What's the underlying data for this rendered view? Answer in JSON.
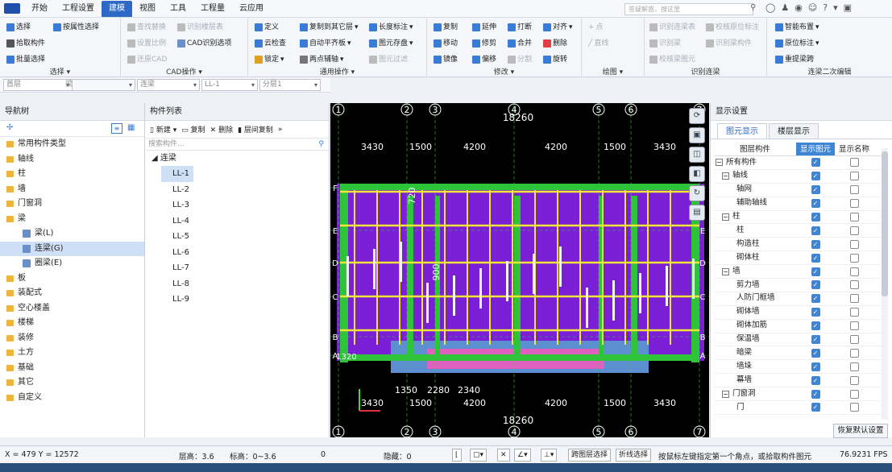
{
  "menu": {
    "tabs": [
      "开始",
      "工程设置",
      "建模",
      "视图",
      "工具",
      "工程量",
      "云应用"
    ],
    "active_index": 2,
    "search_placeholder": "答疑解惑，搜这里"
  },
  "ribbon": {
    "select_group": {
      "label": "选择",
      "items": [
        "选择",
        "按属性选择",
        "拾取构件",
        "批量选择"
      ]
    },
    "cad_group": {
      "label": "CAD操作",
      "items": [
        "查找替换",
        "识别楼层表",
        "设置比例",
        "CAD识别选项",
        "还原CAD"
      ]
    },
    "common_group": {
      "label": "通用操作",
      "items": [
        "定义",
        "复制到其它层",
        "长度标注",
        "云检查",
        "自动平齐板",
        "图元存盘",
        "锁定",
        "两点辅轴",
        "图元过滤"
      ]
    },
    "modify_group": {
      "label": "修改",
      "items": [
        "复制",
        "延伸",
        "打断",
        "对齐",
        "移动",
        "修剪",
        "合并",
        "删除",
        "镜像",
        "偏移",
        "分割",
        "旋转"
      ]
    },
    "draw_group": {
      "label": "绘图",
      "items": [
        "点",
        "直线"
      ]
    },
    "recog_group": {
      "label": "识别连梁",
      "items": [
        "识别连梁表",
        "校核原位标注",
        "识别梁",
        "识别梁构件",
        "校核梁图元"
      ]
    },
    "edit2_group": {
      "label": "连梁二次编辑",
      "items": [
        "智能布置",
        "原位标注",
        "重提梁跨"
      ]
    }
  },
  "filter": {
    "floor": "首层",
    "type": "梁",
    "sub": "连梁",
    "comp": "LL-1",
    "layer": "分层1"
  },
  "nav": {
    "title": "导航树",
    "items": [
      {
        "label": "常用构件类型",
        "level": 0
      },
      {
        "label": "轴线",
        "level": 0
      },
      {
        "label": "柱",
        "level": 0
      },
      {
        "label": "墙",
        "level": 0
      },
      {
        "label": "门窗洞",
        "level": 0
      },
      {
        "label": "梁",
        "level": 0
      },
      {
        "label": "梁(L)",
        "level": 1
      },
      {
        "label": "连梁(G)",
        "level": 1,
        "selected": true
      },
      {
        "label": "圈梁(E)",
        "level": 1
      },
      {
        "label": "板",
        "level": 0
      },
      {
        "label": "装配式",
        "level": 0
      },
      {
        "label": "空心楼盖",
        "level": 0
      },
      {
        "label": "楼梯",
        "level": 0
      },
      {
        "label": "装修",
        "level": 0
      },
      {
        "label": "土方",
        "level": 0
      },
      {
        "label": "基础",
        "level": 0
      },
      {
        "label": "其它",
        "level": 0
      },
      {
        "label": "自定义",
        "level": 0
      }
    ]
  },
  "components": {
    "title": "构件列表",
    "tools": [
      "新建",
      "复制",
      "删除",
      "层间复制"
    ],
    "search_placeholder": "搜索构件...",
    "group": "连梁",
    "items": [
      "LL-1",
      "LL-2",
      "LL-3",
      "LL-4",
      "LL-5",
      "LL-6",
      "LL-7",
      "LL-8",
      "LL-9"
    ],
    "selected": "LL-1"
  },
  "canvas": {
    "axis_numbers": [
      "1",
      "2",
      "3",
      "4",
      "5",
      "6",
      "7"
    ],
    "axis_letters": [
      "F",
      "E",
      "D",
      "C",
      "B",
      "A"
    ],
    "top_total": "18260",
    "bottom_total": "18260",
    "top_dims": [
      "3430",
      "1500",
      "4200",
      "4200",
      "1500",
      "3430"
    ],
    "bottom_dims": [
      "3430",
      "1500",
      "4200",
      "4200",
      "1500",
      "3430"
    ],
    "lower_dims": [
      "1350",
      "2280",
      "2340"
    ],
    "vertical_dims": [
      "720",
      "900"
    ],
    "left_dim": "1320"
  },
  "display": {
    "title": "显示设置",
    "tabs": [
      "图元显示",
      "楼层显示"
    ],
    "headers": [
      "图层构件",
      "显示图元",
      "显示名称"
    ],
    "rows": [
      {
        "label": "所有构件",
        "indent": 0,
        "group": true,
        "show": true,
        "name": false
      },
      {
        "label": "轴线",
        "indent": 1,
        "group": true,
        "show": true,
        "name": false
      },
      {
        "label": "轴网",
        "indent": 2,
        "show": true,
        "name": false
      },
      {
        "label": "辅助轴线",
        "indent": 2,
        "show": true,
        "name": false
      },
      {
        "label": "柱",
        "indent": 1,
        "group": true,
        "show": true,
        "name": false
      },
      {
        "label": "柱",
        "indent": 2,
        "show": true,
        "name": false
      },
      {
        "label": "构造柱",
        "indent": 2,
        "show": true,
        "name": false
      },
      {
        "label": "砌体柱",
        "indent": 2,
        "show": true,
        "name": false
      },
      {
        "label": "墙",
        "indent": 1,
        "group": true,
        "show": true,
        "name": false
      },
      {
        "label": "剪力墙",
        "indent": 2,
        "show": true,
        "name": false
      },
      {
        "label": "人防门框墙",
        "indent": 2,
        "show": true,
        "name": false
      },
      {
        "label": "砌体墙",
        "indent": 2,
        "show": true,
        "name": false
      },
      {
        "label": "砌体加筋",
        "indent": 2,
        "show": true,
        "name": false
      },
      {
        "label": "保温墙",
        "indent": 2,
        "show": true,
        "name": false
      },
      {
        "label": "暗梁",
        "indent": 2,
        "show": true,
        "name": false
      },
      {
        "label": "墙垛",
        "indent": 2,
        "show": true,
        "name": false
      },
      {
        "label": "幕墙",
        "indent": 2,
        "show": true,
        "name": false
      },
      {
        "label": "门窗洞",
        "indent": 1,
        "group": true,
        "show": true,
        "name": false
      },
      {
        "label": "门",
        "indent": 2,
        "show": true,
        "name": false
      }
    ],
    "reset": "恢复默认设置"
  },
  "status": {
    "coords": "X = 479 Y = 12572",
    "floor_height": "层高：3.6",
    "elevation": "标高：0~3.6",
    "zero": "0",
    "hidden": "隐藏：0",
    "cross_layer": "跨图层选择",
    "polyline": "折线选择",
    "hint": "按鼠标左键指定第一个角点，或拾取构件图元",
    "fps": "76.9231 FPS"
  },
  "colors": {
    "accent": "#2f69c6",
    "canvas_bg": "#000000",
    "slab": "#7a1fd6",
    "beam": "#f0e636",
    "wall": "#2ec43a",
    "column": "#f5f5f5"
  }
}
